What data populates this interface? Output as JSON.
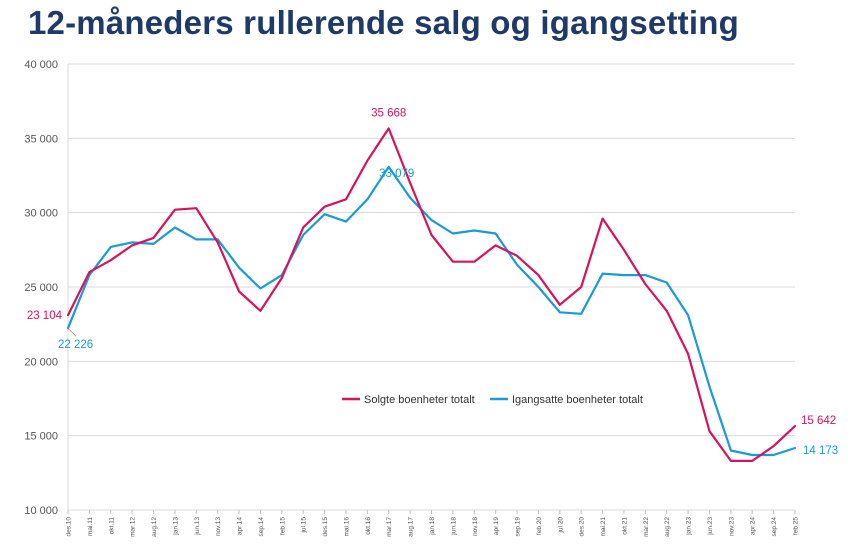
{
  "title": "12-måneders rullerende salg og igangsetting",
  "chart_data": {
    "type": "line",
    "ylim": [
      10000,
      40000
    ],
    "y_ticks": [
      "10 000",
      "15 000",
      "20 000",
      "25 000",
      "30 000",
      "35 000",
      "40 000"
    ],
    "y_tick_values": [
      10000,
      15000,
      20000,
      25000,
      30000,
      35000,
      40000
    ],
    "x_start": "des.10",
    "x_end": "feb.25",
    "x_ticks": [
      "des.10",
      "mai.11",
      "okt.11",
      "mar.12",
      "aug.12",
      "jan.13",
      "jun.13",
      "nov.13",
      "apr.14",
      "sep.14",
      "feb.15",
      "jul.15",
      "des.15",
      "mai.16",
      "okt.16",
      "mar.17",
      "aug.17",
      "jan.18",
      "jun.18",
      "nov.18",
      "apr.19",
      "sep.19",
      "feb.20",
      "jul.20",
      "des.20",
      "mai.21",
      "okt.21",
      "mar.22",
      "aug.22",
      "jan.23",
      "jun.23",
      "nov.23",
      "apr.24",
      "sep.24",
      "feb.25"
    ],
    "grid": true,
    "legend_position": "center-right",
    "series": [
      {
        "name": "Solgte boenheter totalt",
        "color": "#d6135d",
        "values": [
          [
            "des.10",
            23104
          ],
          [
            "mai.11",
            26000
          ],
          [
            "okt.11",
            26800
          ],
          [
            "mar.12",
            27800
          ],
          [
            "aug.12",
            28300
          ],
          [
            "jan.13",
            30200
          ],
          [
            "jun.13",
            30300
          ],
          [
            "nov.13",
            28000
          ],
          [
            "apr.14",
            24700
          ],
          [
            "sep.14",
            23400
          ],
          [
            "feb.15",
            25600
          ],
          [
            "jul.15",
            29000
          ],
          [
            "des.15",
            30400
          ],
          [
            "mai.16",
            30900
          ],
          [
            "okt.16",
            33500
          ],
          [
            "mar.17",
            35668
          ],
          [
            "aug.17",
            32000
          ],
          [
            "jan.18",
            28500
          ],
          [
            "jun.18",
            26700
          ],
          [
            "nov.18",
            26700
          ],
          [
            "apr.19",
            27800
          ],
          [
            "sep.19",
            27100
          ],
          [
            "feb.20",
            25800
          ],
          [
            "jul.20",
            23800
          ],
          [
            "des.20",
            25000
          ],
          [
            "mai.21",
            29600
          ],
          [
            "okt.21",
            27500
          ],
          [
            "mar.22",
            25200
          ],
          [
            "aug.22",
            23400
          ],
          [
            "jan.23",
            20500
          ],
          [
            "jun.23",
            15300
          ],
          [
            "nov.23",
            13300
          ],
          [
            "apr.24",
            13300
          ],
          [
            "sep.24",
            14300
          ],
          [
            "feb.25",
            15642
          ]
        ],
        "label_values": [
          "23 104",
          "35 668",
          "15 642"
        ]
      },
      {
        "name": "Igangsatte boenheter totalt",
        "color": "#1a9ad6",
        "values": [
          [
            "des.10",
            22226
          ],
          [
            "mai.11",
            25800
          ],
          [
            "okt.11",
            27700
          ],
          [
            "mar.12",
            28000
          ],
          [
            "aug.12",
            27900
          ],
          [
            "jan.13",
            29000
          ],
          [
            "jun.13",
            28200
          ],
          [
            "nov.13",
            28200
          ],
          [
            "apr.14",
            26300
          ],
          [
            "sep.14",
            24900
          ],
          [
            "feb.15",
            25800
          ],
          [
            "jul.15",
            28500
          ],
          [
            "des.15",
            29900
          ],
          [
            "mai.16",
            29400
          ],
          [
            "okt.16",
            30900
          ],
          [
            "mar.17",
            33079
          ],
          [
            "aug.17",
            31000
          ],
          [
            "jan.18",
            29500
          ],
          [
            "jun.18",
            28600
          ],
          [
            "nov.18",
            28800
          ],
          [
            "apr.19",
            28600
          ],
          [
            "sep.19",
            26500
          ],
          [
            "feb.20",
            25000
          ],
          [
            "jul.20",
            23300
          ],
          [
            "des.20",
            23200
          ],
          [
            "mai.21",
            25900
          ],
          [
            "okt.21",
            25800
          ],
          [
            "mar.22",
            25800
          ],
          [
            "aug.22",
            25300
          ],
          [
            "jan.23",
            23100
          ],
          [
            "jun.23",
            18300
          ],
          [
            "nov.23",
            14000
          ],
          [
            "apr.24",
            13700
          ],
          [
            "sep.24",
            13700
          ],
          [
            "feb.25",
            14173
          ]
        ],
        "label_values": [
          "22 226",
          "33 079",
          "14 173"
        ]
      }
    ]
  }
}
